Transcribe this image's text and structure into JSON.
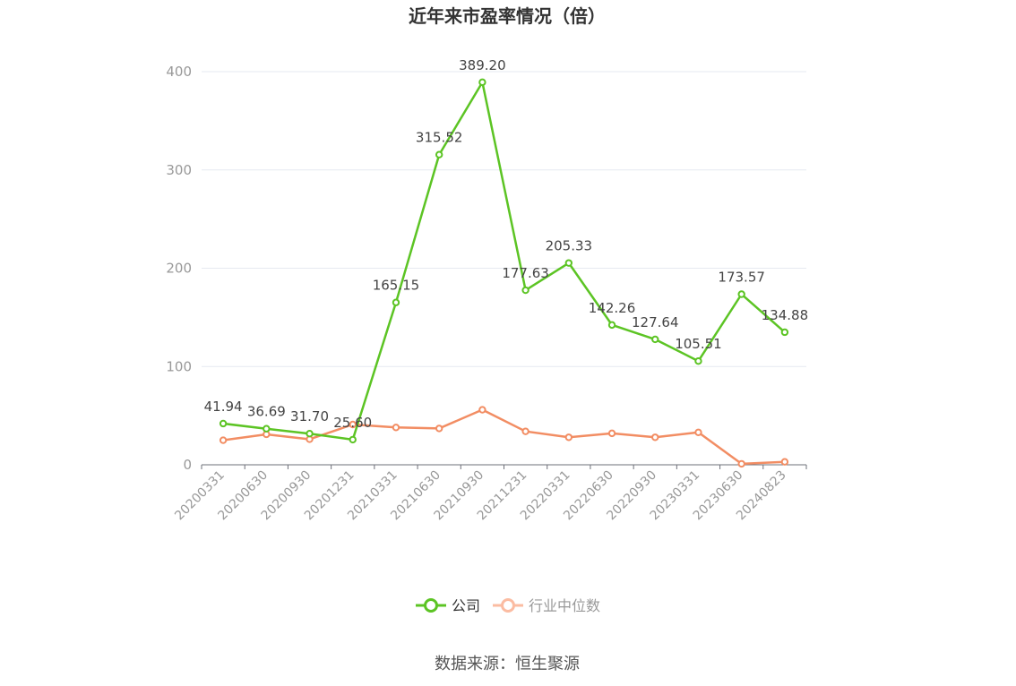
{
  "chart_data": {
    "type": "line",
    "title": "近年来市盈率情况（倍）",
    "xlabel": "",
    "ylabel": "",
    "ylim": [
      0,
      400
    ],
    "yticks": [
      0,
      100,
      200,
      300,
      400
    ],
    "grid": true,
    "legend_position": "bottom",
    "categories": [
      "20200331",
      "20200630",
      "20200930",
      "20201231",
      "20210331",
      "20210630",
      "20210930",
      "20211231",
      "20220331",
      "20220630",
      "20220930",
      "20230331",
      "20230630",
      "20240823"
    ],
    "series": [
      {
        "name": "公司",
        "color": "#5cc424",
        "values": [
          41.94,
          36.69,
          31.7,
          25.6,
          165.15,
          315.52,
          389.2,
          177.63,
          205.33,
          142.26,
          127.64,
          105.51,
          173.57,
          134.88
        ],
        "labels": [
          "41.94",
          "36.69",
          "31.70",
          "25.60",
          "165.15",
          "315.52",
          "389.20",
          "177.63",
          "205.33",
          "142.26",
          "127.64",
          "105.51",
          "173.57",
          "134.88"
        ]
      },
      {
        "name": "行业中位数",
        "color": "#f28d63",
        "values": [
          25,
          31,
          26,
          41,
          38,
          37,
          56,
          34,
          28,
          32,
          28,
          33,
          1,
          3
        ]
      }
    ],
    "legend": {
      "company_color": "#5cc424",
      "industry_color": "#fbbca2",
      "industry_text_color": "#999999"
    }
  },
  "footer": {
    "source": "数据来源：恒生聚源"
  }
}
